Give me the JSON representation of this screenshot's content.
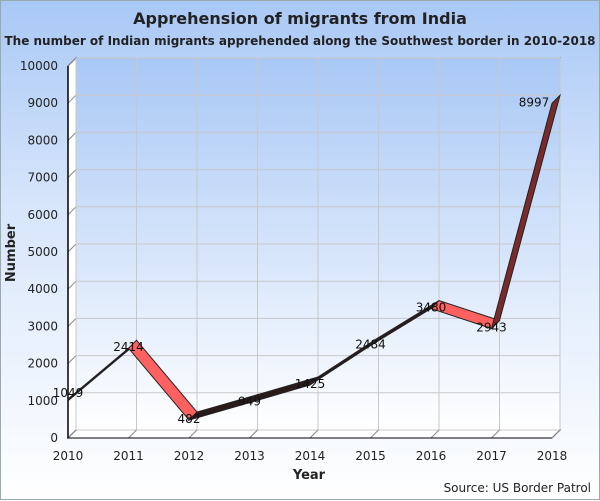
{
  "chart_data": {
    "type": "line",
    "title": "Apprehension of migrants from India",
    "subtitle": "The number of Indian migrants apprehended along the Southwest border in 2010-2018",
    "xlabel": "Year",
    "ylabel": "Number",
    "source": "Source: US Border Patrol",
    "categories": [
      "2010",
      "2011",
      "2012",
      "2013",
      "2014",
      "2015",
      "2016",
      "2017",
      "2018"
    ],
    "values": [
      1049,
      2414,
      482,
      949,
      1425,
      2484,
      3480,
      2943,
      8997
    ],
    "ylim": [
      0,
      10000
    ],
    "yticks": [
      0,
      1000,
      2000,
      3000,
      4000,
      5000,
      6000,
      7000,
      8000,
      9000,
      10000
    ],
    "grid": true,
    "legend": "none",
    "style": "3d-ribbon",
    "colors": {
      "rise": "#2b1a1a",
      "fall": "#ff6060",
      "last_rise": "#7a2a2a",
      "grid": "#c8c8c8"
    }
  }
}
